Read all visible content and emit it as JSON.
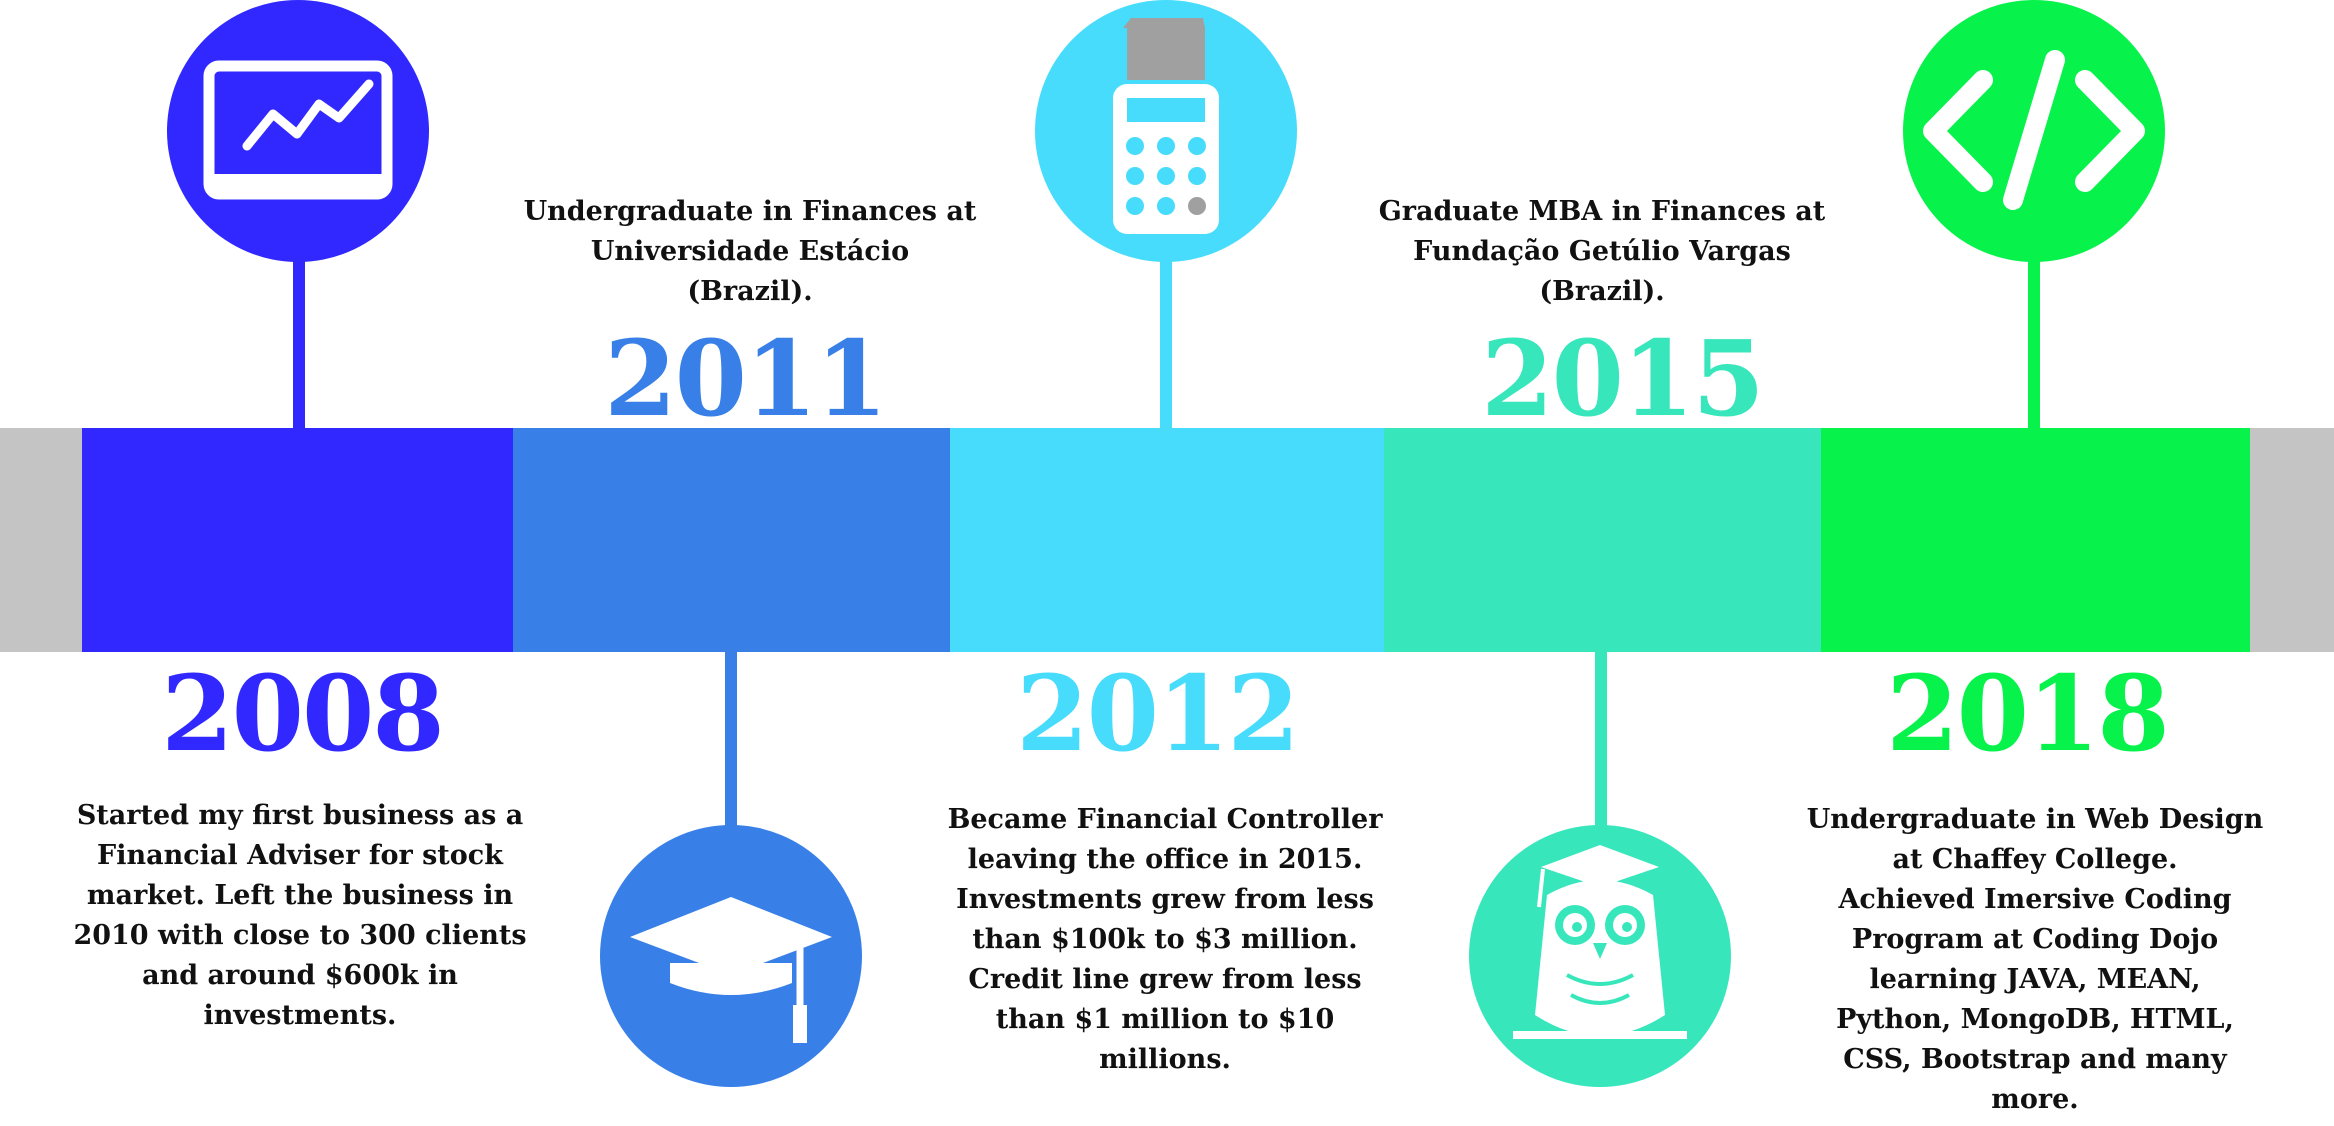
{
  "colors": {
    "c2008": "#3028ff",
    "c2011": "#3880e8",
    "c2012": "#48dcfc",
    "c2015": "#38e6bc",
    "c2018": "#08f24c",
    "track": "#c4c4c4"
  },
  "milestones": [
    {
      "year": "2008",
      "icon": "monitor-chart-icon",
      "description": [
        "Started my first business as a",
        "Financial Adviser for stock",
        "market. Left the business in",
        "2010 with close to 300 clients",
        "and around $600k in",
        "investments."
      ]
    },
    {
      "year": "2011",
      "icon": "graduation-cap-icon",
      "description": [
        "Undergraduate in Finances at",
        "Universidade Estácio",
        "(Brazil)."
      ]
    },
    {
      "year": "2012",
      "icon": "calculator-icon",
      "description": [
        "Became Financial Controller",
        "leaving the office in 2015.",
        "Investments grew from less",
        "than $100k to $3 million.",
        "Credit line grew from less",
        "than $1 million to $10",
        "millions."
      ]
    },
    {
      "year": "2015",
      "icon": "graduate-owl-icon",
      "description": [
        "Graduate MBA in Finances at",
        "Fundação Getúlio Vargas",
        "(Brazil)."
      ]
    },
    {
      "year": "2018",
      "icon": "code-brackets-icon",
      "description": [
        "Undergraduate in Web Design",
        "at Chaffey College.",
        "Achieved Imersive Coding",
        "Program at Coding Dojo",
        "learning JAVA, MEAN,",
        "Python, MongoDB, HTML,",
        "CSS, Bootstrap and many",
        "more."
      ]
    }
  ]
}
